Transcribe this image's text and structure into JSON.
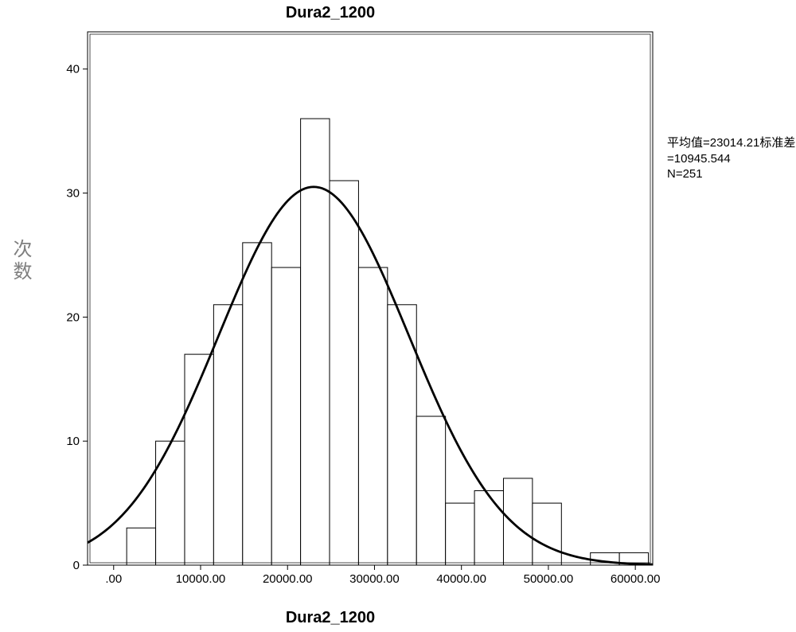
{
  "title": "Dura2_1200",
  "xlabel": "Dura2_1200",
  "ylabel": "次数",
  "stats_line1": "平均值=23014.21标准差",
  "stats_line2": "=10945.544",
  "stats_line3": "N=251",
  "chart": {
    "type": "histogram",
    "background_color": "#ffffff",
    "frame_color": "#000000",
    "frame_width": 1.5,
    "xlim": [
      -3000,
      62000
    ],
    "ylim": [
      0,
      43
    ],
    "xtick_values": [
      0,
      10000,
      20000,
      30000,
      40000,
      50000,
      60000
    ],
    "xtick_labels": [
      ".00",
      "10000.00",
      "20000.00",
      "30000.00",
      "40000.00",
      "50000.00",
      "60000.00"
    ],
    "ytick_values": [
      0,
      10,
      20,
      30,
      40
    ],
    "ytick_labels": [
      "0",
      "10",
      "20",
      "30",
      "40"
    ],
    "tick_fontsize": 15,
    "tick_color": "#000000",
    "bar_fill": "#ffffff",
    "bar_stroke": "#000000",
    "bar_stroke_width": 1,
    "bin_width": 3333,
    "bins": [
      {
        "start": 1500,
        "count": 3
      },
      {
        "start": 4833,
        "count": 10
      },
      {
        "start": 8167,
        "count": 17
      },
      {
        "start": 11500,
        "count": 21
      },
      {
        "start": 14833,
        "count": 26
      },
      {
        "start": 18167,
        "count": 24
      },
      {
        "start": 21500,
        "count": 36
      },
      {
        "start": 24833,
        "count": 31
      },
      {
        "start": 28167,
        "count": 24
      },
      {
        "start": 31500,
        "count": 21
      },
      {
        "start": 34833,
        "count": 12
      },
      {
        "start": 38167,
        "count": 5
      },
      {
        "start": 41500,
        "count": 6
      },
      {
        "start": 44833,
        "count": 7
      },
      {
        "start": 48167,
        "count": 5
      },
      {
        "start": 51500,
        "count": 0
      },
      {
        "start": 54833,
        "count": 1
      },
      {
        "start": 58167,
        "count": 1
      }
    ],
    "curve": {
      "mean": 23014.21,
      "sd": 10945.544,
      "n": 251,
      "peak_y": 30.5,
      "stroke": "#000000",
      "stroke_width": 2.8
    }
  }
}
